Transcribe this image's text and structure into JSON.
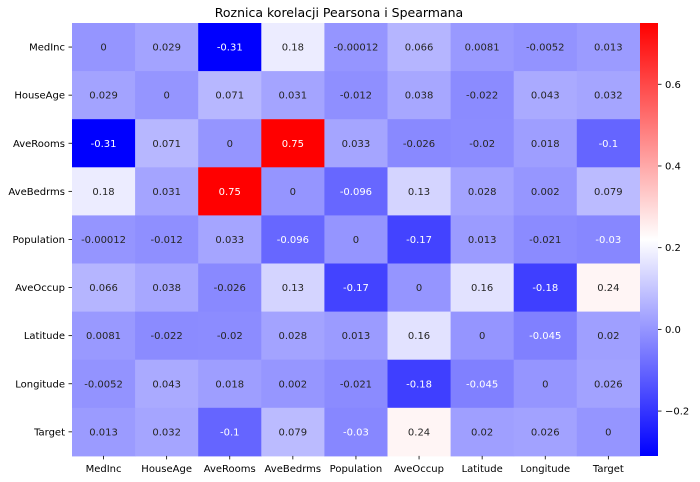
{
  "chart_data": {
    "type": "heatmap",
    "title": "Roznica korelacji Pearsona i  Spearmana",
    "rows": [
      "MedInc",
      "HouseAge",
      "AveRooms",
      "AveBedrms",
      "Population",
      "AveOccup",
      "Latitude",
      "Longitude",
      "Target"
    ],
    "columns": [
      "MedInc",
      "HouseAge",
      "AveRooms",
      "AveBedrms",
      "Population",
      "AveOccup",
      "Latitude",
      "Longitude",
      "Target"
    ],
    "values": [
      [
        0,
        0.029,
        -0.31,
        0.18,
        -0.00012,
        0.066,
        0.0081,
        -0.0052,
        0.013
      ],
      [
        0.029,
        0,
        0.071,
        0.031,
        -0.012,
        0.038,
        -0.022,
        0.043,
        0.032
      ],
      [
        -0.31,
        0.071,
        0,
        0.75,
        0.033,
        -0.026,
        -0.02,
        0.018,
        -0.1
      ],
      [
        0.18,
        0.031,
        0.75,
        0,
        -0.096,
        0.13,
        0.028,
        0.002,
        0.079
      ],
      [
        -0.00012,
        -0.012,
        0.033,
        -0.096,
        0,
        -0.17,
        0.013,
        -0.021,
        -0.03
      ],
      [
        0.066,
        0.038,
        -0.026,
        0.13,
        -0.17,
        0,
        0.16,
        -0.18,
        0.24
      ],
      [
        0.0081,
        -0.022,
        -0.02,
        0.028,
        0.013,
        0.16,
        0,
        -0.045,
        0.02
      ],
      [
        -0.0052,
        0.043,
        0.018,
        0.002,
        -0.021,
        -0.18,
        -0.045,
        0,
        0.026
      ],
      [
        0.013,
        0.032,
        -0.1,
        0.079,
        -0.03,
        0.24,
        0.02,
        0.026,
        0
      ]
    ],
    "labels": [
      [
        "0",
        "0.029",
        "-0.31",
        "0.18",
        "-0.00012",
        "0.066",
        "0.0081",
        "-0.0052",
        "0.013"
      ],
      [
        "0.029",
        "0",
        "0.071",
        "0.031",
        "-0.012",
        "0.038",
        "-0.022",
        "0.043",
        "0.032"
      ],
      [
        "-0.31",
        "0.071",
        "0",
        "0.75",
        "0.033",
        "-0.026",
        "-0.02",
        "0.018",
        "-0.1"
      ],
      [
        "0.18",
        "0.031",
        "0.75",
        "0",
        "-0.096",
        "0.13",
        "0.028",
        "0.002",
        "0.079"
      ],
      [
        "-0.00012",
        "-0.012",
        "0.033",
        "-0.096",
        "0",
        "-0.17",
        "0.013",
        "-0.021",
        "-0.03"
      ],
      [
        "0.066",
        "0.038",
        "-0.026",
        "0.13",
        "-0.17",
        "0",
        "0.16",
        "-0.18",
        "0.24"
      ],
      [
        "0.0081",
        "-0.022",
        "-0.02",
        "0.028",
        "0.013",
        "0.16",
        "0",
        "-0.045",
        "0.02"
      ],
      [
        "-0.0052",
        "0.043",
        "0.018",
        "0.002",
        "-0.021",
        "-0.18",
        "-0.045",
        "0",
        "0.026"
      ],
      [
        "0.013",
        "0.032",
        "-0.1",
        "0.079",
        "-0.03",
        "0.24",
        "0.02",
        "0.026",
        "0"
      ]
    ],
    "colormap": "bwr",
    "vmin": -0.31,
    "vmax": 0.75,
    "colorbar_ticks": [
      -0.2,
      0.0,
      0.2,
      0.4,
      0.6
    ],
    "colorbar_tick_labels": [
      "−0.2",
      "0.0",
      "0.2",
      "0.4",
      "0.6"
    ],
    "colors": {
      "low": "#0000ff",
      "mid": "#ffffff",
      "high": "#ff0000",
      "label_light": "#ffffff",
      "label_dark": "#262626"
    }
  }
}
